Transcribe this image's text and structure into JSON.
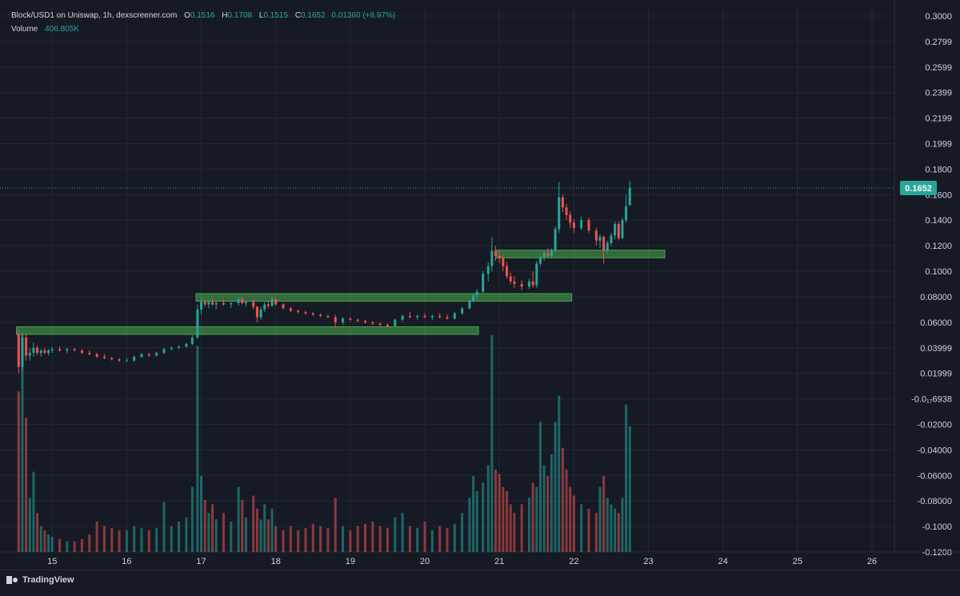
{
  "legend": {
    "symbol": "Block/USD1 on Uniswap, 1h, dexscreener.com",
    "o_label": "O",
    "o": "0.1516",
    "h_label": "H",
    "h": "0.1708",
    "l_label": "L",
    "l": "0.1515",
    "c_label": "C",
    "c": "0.1652",
    "change": "0.01360 (+8.97%)",
    "volume_label": "Volume",
    "volume": "406.805K"
  },
  "price_tag": "0.1652",
  "branding": "TradingView",
  "colors": {
    "background": "#161a25",
    "up": "#26a69a",
    "down": "#ef5350",
    "zone": "#4caf50",
    "price_tag": "#26a69a"
  },
  "chart_data": {
    "type": "candlestick",
    "xlabel": "",
    "ylabel": "",
    "x_ticks": [
      "15",
      "16",
      "17",
      "18",
      "19",
      "20",
      "21",
      "22",
      "23",
      "24",
      "25",
      "26"
    ],
    "x_range": [
      14.3,
      26.3
    ],
    "y_ticks": [
      "0.3000",
      "0.2799",
      "0.2599",
      "0.2399",
      "0.2199",
      "0.1999",
      "0.1800",
      "0.1600",
      "0.1400",
      "0.1200",
      "0.1000",
      "0.08000",
      "0.06000",
      "0.03999",
      "0.01999",
      "-0.0₁₇6938",
      "-0.02000",
      "-0.04000",
      "-0.06000",
      "-0.08000",
      "-0.1000",
      "-0.1200"
    ],
    "y_range": [
      -0.12,
      0.3
    ],
    "last_price": 0.1652,
    "grid": true,
    "zones": [
      {
        "x0": 14.52,
        "x1": 20.72,
        "y": 0.0535,
        "thickness": 0.006
      },
      {
        "x0": 16.93,
        "x1": 21.97,
        "y": 0.0795,
        "thickness": 0.006
      },
      {
        "x0": 20.95,
        "x1": 23.22,
        "y": 0.1135,
        "thickness": 0.006
      }
    ],
    "volume_scale": {
      "max_value": 100,
      "max_price_height": 0.17
    },
    "candles": [
      {
        "x": 14.55,
        "o": 0.051,
        "h": 0.054,
        "l": 0.02,
        "c": 0.025,
        "v": 74
      },
      {
        "x": 14.6,
        "o": 0.025,
        "h": 0.052,
        "l": 0.021,
        "c": 0.048,
        "v": 100
      },
      {
        "x": 14.65,
        "o": 0.048,
        "h": 0.051,
        "l": 0.03,
        "c": 0.034,
        "v": 62
      },
      {
        "x": 14.7,
        "o": 0.034,
        "h": 0.04,
        "l": 0.03,
        "c": 0.036,
        "v": 25
      },
      {
        "x": 14.75,
        "o": 0.036,
        "h": 0.044,
        "l": 0.033,
        "c": 0.04,
        "v": 37
      },
      {
        "x": 14.8,
        "o": 0.04,
        "h": 0.042,
        "l": 0.034,
        "c": 0.036,
        "v": 18
      },
      {
        "x": 14.85,
        "o": 0.036,
        "h": 0.039,
        "l": 0.033,
        "c": 0.038,
        "v": 12
      },
      {
        "x": 14.9,
        "o": 0.038,
        "h": 0.04,
        "l": 0.035,
        "c": 0.036,
        "v": 10
      },
      {
        "x": 14.95,
        "o": 0.036,
        "h": 0.039,
        "l": 0.034,
        "c": 0.038,
        "v": 8
      },
      {
        "x": 15.0,
        "o": 0.038,
        "h": 0.041,
        "l": 0.036,
        "c": 0.039,
        "v": 7
      },
      {
        "x": 15.1,
        "o": 0.039,
        "h": 0.041,
        "l": 0.037,
        "c": 0.038,
        "v": 6
      },
      {
        "x": 15.2,
        "o": 0.038,
        "h": 0.04,
        "l": 0.036,
        "c": 0.039,
        "v": 5
      },
      {
        "x": 15.3,
        "o": 0.039,
        "h": 0.04,
        "l": 0.037,
        "c": 0.038,
        "v": 5
      },
      {
        "x": 15.4,
        "o": 0.038,
        "h": 0.039,
        "l": 0.035,
        "c": 0.036,
        "v": 6
      },
      {
        "x": 15.5,
        "o": 0.036,
        "h": 0.038,
        "l": 0.034,
        "c": 0.035,
        "v": 8
      },
      {
        "x": 15.6,
        "o": 0.035,
        "h": 0.036,
        "l": 0.032,
        "c": 0.033,
        "v": 14
      },
      {
        "x": 15.7,
        "o": 0.033,
        "h": 0.035,
        "l": 0.031,
        "c": 0.032,
        "v": 12
      },
      {
        "x": 15.8,
        "o": 0.032,
        "h": 0.033,
        "l": 0.03,
        "c": 0.031,
        "v": 11
      },
      {
        "x": 15.9,
        "o": 0.031,
        "h": 0.032,
        "l": 0.029,
        "c": 0.03,
        "v": 10
      },
      {
        "x": 16.0,
        "o": 0.03,
        "h": 0.032,
        "l": 0.029,
        "c": 0.03,
        "v": 10
      },
      {
        "x": 16.1,
        "o": 0.03,
        "h": 0.034,
        "l": 0.029,
        "c": 0.033,
        "v": 12
      },
      {
        "x": 16.2,
        "o": 0.033,
        "h": 0.036,
        "l": 0.032,
        "c": 0.035,
        "v": 11
      },
      {
        "x": 16.3,
        "o": 0.035,
        "h": 0.036,
        "l": 0.033,
        "c": 0.034,
        "v": 10
      },
      {
        "x": 16.4,
        "o": 0.034,
        "h": 0.037,
        "l": 0.033,
        "c": 0.036,
        "v": 11
      },
      {
        "x": 16.5,
        "o": 0.036,
        "h": 0.04,
        "l": 0.035,
        "c": 0.039,
        "v": 23
      },
      {
        "x": 16.6,
        "o": 0.039,
        "h": 0.041,
        "l": 0.038,
        "c": 0.04,
        "v": 12
      },
      {
        "x": 16.7,
        "o": 0.04,
        "h": 0.042,
        "l": 0.039,
        "c": 0.041,
        "v": 14
      },
      {
        "x": 16.8,
        "o": 0.041,
        "h": 0.044,
        "l": 0.04,
        "c": 0.043,
        "v": 16
      },
      {
        "x": 16.88,
        "o": 0.043,
        "h": 0.05,
        "l": 0.042,
        "c": 0.048,
        "v": 30
      },
      {
        "x": 16.95,
        "o": 0.048,
        "h": 0.074,
        "l": 0.047,
        "c": 0.07,
        "v": 95
      },
      {
        "x": 17.0,
        "o": 0.07,
        "h": 0.08,
        "l": 0.066,
        "c": 0.076,
        "v": 35
      },
      {
        "x": 17.05,
        "o": 0.076,
        "h": 0.078,
        "l": 0.072,
        "c": 0.074,
        "v": 24
      },
      {
        "x": 17.1,
        "o": 0.074,
        "h": 0.078,
        "l": 0.071,
        "c": 0.076,
        "v": 18
      },
      {
        "x": 17.15,
        "o": 0.076,
        "h": 0.079,
        "l": 0.073,
        "c": 0.074,
        "v": 22
      },
      {
        "x": 17.2,
        "o": 0.074,
        "h": 0.077,
        "l": 0.07,
        "c": 0.075,
        "v": 15
      },
      {
        "x": 17.3,
        "o": 0.075,
        "h": 0.078,
        "l": 0.073,
        "c": 0.074,
        "v": 18
      },
      {
        "x": 17.4,
        "o": 0.074,
        "h": 0.076,
        "l": 0.071,
        "c": 0.075,
        "v": 14
      },
      {
        "x": 17.5,
        "o": 0.075,
        "h": 0.08,
        "l": 0.073,
        "c": 0.078,
        "v": 30
      },
      {
        "x": 17.55,
        "o": 0.078,
        "h": 0.08,
        "l": 0.074,
        "c": 0.075,
        "v": 24
      },
      {
        "x": 17.6,
        "o": 0.075,
        "h": 0.077,
        "l": 0.072,
        "c": 0.076,
        "v": 16
      },
      {
        "x": 17.7,
        "o": 0.076,
        "h": 0.078,
        "l": 0.07,
        "c": 0.072,
        "v": 26
      },
      {
        "x": 17.75,
        "o": 0.072,
        "h": 0.073,
        "l": 0.06,
        "c": 0.064,
        "v": 20
      },
      {
        "x": 17.8,
        "o": 0.064,
        "h": 0.072,
        "l": 0.062,
        "c": 0.07,
        "v": 15
      },
      {
        "x": 17.85,
        "o": 0.07,
        "h": 0.076,
        "l": 0.068,
        "c": 0.074,
        "v": 22
      },
      {
        "x": 17.9,
        "o": 0.074,
        "h": 0.077,
        "l": 0.071,
        "c": 0.073,
        "v": 15
      },
      {
        "x": 17.95,
        "o": 0.073,
        "h": 0.08,
        "l": 0.072,
        "c": 0.078,
        "v": 20
      },
      {
        "x": 18.0,
        "o": 0.078,
        "h": 0.079,
        "l": 0.073,
        "c": 0.074,
        "v": 12
      },
      {
        "x": 18.1,
        "o": 0.074,
        "h": 0.075,
        "l": 0.07,
        "c": 0.071,
        "v": 10
      },
      {
        "x": 18.2,
        "o": 0.071,
        "h": 0.072,
        "l": 0.068,
        "c": 0.069,
        "v": 12
      },
      {
        "x": 18.3,
        "o": 0.069,
        "h": 0.07,
        "l": 0.067,
        "c": 0.068,
        "v": 10
      },
      {
        "x": 18.4,
        "o": 0.068,
        "h": 0.069,
        "l": 0.066,
        "c": 0.067,
        "v": 11
      },
      {
        "x": 18.5,
        "o": 0.067,
        "h": 0.068,
        "l": 0.065,
        "c": 0.066,
        "v": 13
      },
      {
        "x": 18.6,
        "o": 0.066,
        "h": 0.067,
        "l": 0.064,
        "c": 0.065,
        "v": 12
      },
      {
        "x": 18.7,
        "o": 0.065,
        "h": 0.066,
        "l": 0.063,
        "c": 0.064,
        "v": 11
      },
      {
        "x": 18.8,
        "o": 0.064,
        "h": 0.066,
        "l": 0.056,
        "c": 0.06,
        "v": 25
      },
      {
        "x": 18.9,
        "o": 0.06,
        "h": 0.064,
        "l": 0.058,
        "c": 0.063,
        "v": 12
      },
      {
        "x": 19.0,
        "o": 0.063,
        "h": 0.064,
        "l": 0.061,
        "c": 0.062,
        "v": 10
      },
      {
        "x": 19.1,
        "o": 0.062,
        "h": 0.063,
        "l": 0.06,
        "c": 0.061,
        "v": 12
      },
      {
        "x": 19.2,
        "o": 0.061,
        "h": 0.062,
        "l": 0.059,
        "c": 0.06,
        "v": 13
      },
      {
        "x": 19.3,
        "o": 0.06,
        "h": 0.061,
        "l": 0.058,
        "c": 0.059,
        "v": 14
      },
      {
        "x": 19.4,
        "o": 0.059,
        "h": 0.06,
        "l": 0.057,
        "c": 0.058,
        "v": 12
      },
      {
        "x": 19.5,
        "o": 0.058,
        "h": 0.059,
        "l": 0.056,
        "c": 0.057,
        "v": 11
      },
      {
        "x": 19.6,
        "o": 0.057,
        "h": 0.063,
        "l": 0.056,
        "c": 0.062,
        "v": 16
      },
      {
        "x": 19.7,
        "o": 0.062,
        "h": 0.066,
        "l": 0.061,
        "c": 0.065,
        "v": 18
      },
      {
        "x": 19.8,
        "o": 0.065,
        "h": 0.068,
        "l": 0.063,
        "c": 0.064,
        "v": 12
      },
      {
        "x": 19.9,
        "o": 0.064,
        "h": 0.066,
        "l": 0.062,
        "c": 0.065,
        "v": 11
      },
      {
        "x": 20.0,
        "o": 0.065,
        "h": 0.067,
        "l": 0.063,
        "c": 0.064,
        "v": 14
      },
      {
        "x": 20.1,
        "o": 0.064,
        "h": 0.066,
        "l": 0.062,
        "c": 0.065,
        "v": 10
      },
      {
        "x": 20.2,
        "o": 0.065,
        "h": 0.067,
        "l": 0.063,
        "c": 0.064,
        "v": 12
      },
      {
        "x": 20.3,
        "o": 0.064,
        "h": 0.066,
        "l": 0.062,
        "c": 0.063,
        "v": 11
      },
      {
        "x": 20.4,
        "o": 0.063,
        "h": 0.068,
        "l": 0.062,
        "c": 0.067,
        "v": 13
      },
      {
        "x": 20.5,
        "o": 0.067,
        "h": 0.072,
        "l": 0.066,
        "c": 0.071,
        "v": 18
      },
      {
        "x": 20.6,
        "o": 0.071,
        "h": 0.078,
        "l": 0.07,
        "c": 0.077,
        "v": 25
      },
      {
        "x": 20.65,
        "o": 0.077,
        "h": 0.082,
        "l": 0.076,
        "c": 0.081,
        "v": 35
      },
      {
        "x": 20.7,
        "o": 0.081,
        "h": 0.086,
        "l": 0.079,
        "c": 0.084,
        "v": 28
      },
      {
        "x": 20.78,
        "o": 0.084,
        "h": 0.1,
        "l": 0.083,
        "c": 0.098,
        "v": 32
      },
      {
        "x": 20.85,
        "o": 0.098,
        "h": 0.107,
        "l": 0.092,
        "c": 0.104,
        "v": 40
      },
      {
        "x": 20.9,
        "o": 0.104,
        "h": 0.127,
        "l": 0.1,
        "c": 0.116,
        "v": 100
      },
      {
        "x": 20.95,
        "o": 0.116,
        "h": 0.12,
        "l": 0.108,
        "c": 0.112,
        "v": 38
      },
      {
        "x": 21.0,
        "o": 0.112,
        "h": 0.116,
        "l": 0.106,
        "c": 0.11,
        "v": 36
      },
      {
        "x": 21.05,
        "o": 0.11,
        "h": 0.113,
        "l": 0.1,
        "c": 0.104,
        "v": 30
      },
      {
        "x": 21.1,
        "o": 0.104,
        "h": 0.107,
        "l": 0.094,
        "c": 0.096,
        "v": 28
      },
      {
        "x": 21.15,
        "o": 0.096,
        "h": 0.099,
        "l": 0.09,
        "c": 0.092,
        "v": 22
      },
      {
        "x": 21.2,
        "o": 0.092,
        "h": 0.096,
        "l": 0.087,
        "c": 0.09,
        "v": 18
      },
      {
        "x": 21.3,
        "o": 0.09,
        "h": 0.093,
        "l": 0.085,
        "c": 0.088,
        "v": 22
      },
      {
        "x": 21.4,
        "o": 0.088,
        "h": 0.094,
        "l": 0.086,
        "c": 0.092,
        "v": 25
      },
      {
        "x": 21.45,
        "o": 0.092,
        "h": 0.1,
        "l": 0.087,
        "c": 0.089,
        "v": 32
      },
      {
        "x": 21.5,
        "o": 0.089,
        "h": 0.108,
        "l": 0.087,
        "c": 0.106,
        "v": 30
      },
      {
        "x": 21.55,
        "o": 0.106,
        "h": 0.113,
        "l": 0.104,
        "c": 0.111,
        "v": 60
      },
      {
        "x": 21.6,
        "o": 0.111,
        "h": 0.116,
        "l": 0.108,
        "c": 0.114,
        "v": 40
      },
      {
        "x": 21.65,
        "o": 0.114,
        "h": 0.118,
        "l": 0.11,
        "c": 0.112,
        "v": 35
      },
      {
        "x": 21.7,
        "o": 0.112,
        "h": 0.118,
        "l": 0.11,
        "c": 0.116,
        "v": 45
      },
      {
        "x": 21.75,
        "o": 0.116,
        "h": 0.135,
        "l": 0.115,
        "c": 0.133,
        "v": 60
      },
      {
        "x": 21.8,
        "o": 0.133,
        "h": 0.17,
        "l": 0.13,
        "c": 0.158,
        "v": 72
      },
      {
        "x": 21.85,
        "o": 0.158,
        "h": 0.16,
        "l": 0.146,
        "c": 0.15,
        "v": 48
      },
      {
        "x": 21.9,
        "o": 0.15,
        "h": 0.153,
        "l": 0.14,
        "c": 0.144,
        "v": 38
      },
      {
        "x": 21.95,
        "o": 0.144,
        "h": 0.147,
        "l": 0.134,
        "c": 0.138,
        "v": 30
      },
      {
        "x": 22.0,
        "o": 0.138,
        "h": 0.141,
        "l": 0.13,
        "c": 0.134,
        "v": 26
      },
      {
        "x": 22.1,
        "o": 0.134,
        "h": 0.143,
        "l": 0.132,
        "c": 0.14,
        "v": 22
      },
      {
        "x": 22.2,
        "o": 0.14,
        "h": 0.142,
        "l": 0.13,
        "c": 0.132,
        "v": 20
      },
      {
        "x": 22.3,
        "o": 0.132,
        "h": 0.134,
        "l": 0.12,
        "c": 0.124,
        "v": 18
      },
      {
        "x": 22.35,
        "o": 0.124,
        "h": 0.129,
        "l": 0.118,
        "c": 0.127,
        "v": 30
      },
      {
        "x": 22.4,
        "o": 0.127,
        "h": 0.128,
        "l": 0.106,
        "c": 0.116,
        "v": 35
      },
      {
        "x": 22.45,
        "o": 0.116,
        "h": 0.124,
        "l": 0.114,
        "c": 0.122,
        "v": 25
      },
      {
        "x": 22.5,
        "o": 0.122,
        "h": 0.13,
        "l": 0.12,
        "c": 0.128,
        "v": 22
      },
      {
        "x": 22.55,
        "o": 0.128,
        "h": 0.139,
        "l": 0.125,
        "c": 0.137,
        "v": 20
      },
      {
        "x": 22.6,
        "o": 0.137,
        "h": 0.139,
        "l": 0.124,
        "c": 0.126,
        "v": 18
      },
      {
        "x": 22.65,
        "o": 0.126,
        "h": 0.142,
        "l": 0.125,
        "c": 0.14,
        "v": 25
      },
      {
        "x": 22.7,
        "o": 0.14,
        "h": 0.16,
        "l": 0.138,
        "c": 0.151,
        "v": 68
      },
      {
        "x": 22.75,
        "o": 0.1516,
        "h": 0.1708,
        "l": 0.1515,
        "c": 0.1652,
        "v": 58
      }
    ]
  }
}
